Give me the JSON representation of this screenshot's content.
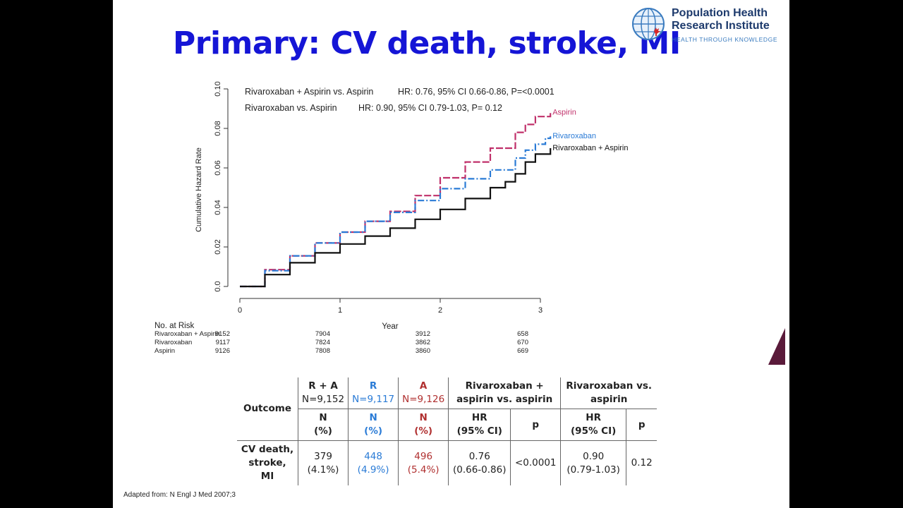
{
  "slide": {
    "title": "Primary: CV death, stroke, MI",
    "logo": {
      "line1": "Population Health",
      "line2": "Research Institute",
      "tagline": "HEALTH THROUGH KNOWLEDGE"
    },
    "source": "Adapted from: N Engl J Med 2007;3"
  },
  "chart_data": {
    "type": "line",
    "xlabel": "Year",
    "ylabel": "Cumulative Hazard Rate",
    "xlim": [
      0,
      3
    ],
    "ylim": [
      0,
      0.1
    ],
    "x_ticks": [
      "0",
      "1",
      "2",
      "3"
    ],
    "y_ticks": [
      "0.0",
      "0.02",
      "0.04",
      "0.06",
      "0.08",
      "0.10"
    ],
    "annotations": [
      {
        "label": "Rivaroxaban + Aspirin vs. Aspirin",
        "stats": "HR: 0.76, 95% CI 0.66-0.86,  P=<0.0001"
      },
      {
        "label": "Rivaroxaban vs. Aspirin",
        "stats": "HR: 0.90, 95% CI 0.79-1.03,  P= 0.12"
      }
    ],
    "series": [
      {
        "name": "Aspirin",
        "color": "#c0306a",
        "style": "dashed",
        "x": [
          0,
          0.25,
          0.5,
          0.75,
          1.0,
          1.25,
          1.5,
          1.75,
          2.0,
          2.25,
          2.5,
          2.75,
          2.85,
          2.95,
          3.05,
          3.1
        ],
        "y": [
          0,
          0.0085,
          0.0155,
          0.022,
          0.0275,
          0.033,
          0.038,
          0.046,
          0.055,
          0.063,
          0.07,
          0.078,
          0.082,
          0.086,
          0.086,
          0.088
        ]
      },
      {
        "name": "Rivaroxaban",
        "color": "#2a7bd6",
        "style": "dashdot",
        "x": [
          0,
          0.25,
          0.5,
          0.75,
          1.0,
          1.25,
          1.5,
          1.75,
          2.0,
          2.25,
          2.5,
          2.75,
          2.85,
          2.95,
          3.05,
          3.1
        ],
        "y": [
          0,
          0.008,
          0.0155,
          0.022,
          0.0275,
          0.033,
          0.0375,
          0.0435,
          0.0495,
          0.0545,
          0.059,
          0.065,
          0.069,
          0.072,
          0.075,
          0.076
        ]
      },
      {
        "name": "Rivaroxaban + Aspirin",
        "color": "#111111",
        "style": "solid",
        "x": [
          0,
          0.25,
          0.5,
          0.75,
          1.0,
          1.25,
          1.5,
          1.75,
          2.0,
          2.25,
          2.5,
          2.65,
          2.75,
          2.85,
          2.95,
          3.1
        ],
        "y": [
          0,
          0.006,
          0.012,
          0.017,
          0.0215,
          0.0255,
          0.0295,
          0.034,
          0.039,
          0.0445,
          0.05,
          0.053,
          0.057,
          0.063,
          0.067,
          0.07
        ]
      }
    ]
  },
  "risk_table": {
    "title": "No. at Risk",
    "rows": [
      {
        "label": "Rivaroxaban + Aspirin",
        "values": [
          "9152",
          "7904",
          "3912",
          "658"
        ]
      },
      {
        "label": "Rivaroxaban",
        "values": [
          "9117",
          "7824",
          "3862",
          "670"
        ]
      },
      {
        "label": "Aspirin",
        "values": [
          "9126",
          "7808",
          "3860",
          "669"
        ]
      }
    ]
  },
  "results_table": {
    "outcome_header": "Outcome",
    "groups": [
      {
        "abbr": "R + A",
        "n": "N=9,152"
      },
      {
        "abbr": "R",
        "n": "N=9,117"
      },
      {
        "abbr": "A",
        "n": "N=9,126"
      }
    ],
    "comparison1": "Rivaroxaban + aspirin vs. aspirin",
    "comparison2": "Rivaroxaban vs. aspirin",
    "sub_n": "N",
    "sub_pct": "(%)",
    "sub_hr": "HR",
    "sub_ci": "(95% CI)",
    "sub_p": "p",
    "row": {
      "outcome_line1": "CV death,",
      "outcome_line2": "stroke, MI",
      "ra_n": "379",
      "ra_pct": "(4.1%)",
      "r_n": "448",
      "r_pct": "(4.9%)",
      "a_n": "496",
      "a_pct": "(5.4%)",
      "hr1": "0.76",
      "ci1": "(0.66-0.86)",
      "p1": "<0.0001",
      "hr2": "0.90",
      "ci2": "(0.79-1.03)",
      "p2": "0.12"
    }
  }
}
